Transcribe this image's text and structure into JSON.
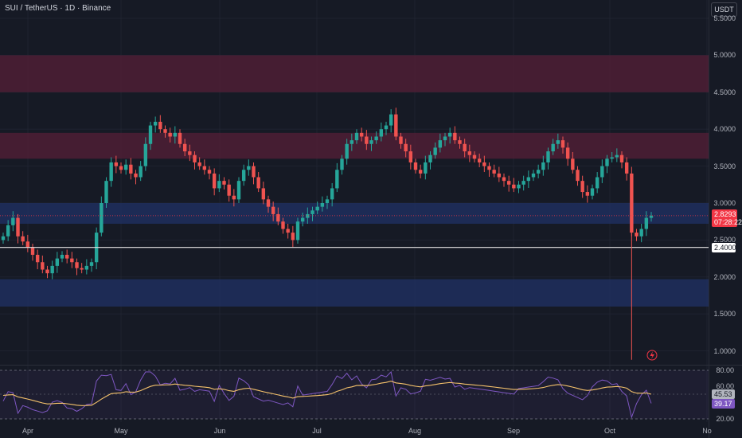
{
  "header": {
    "title": "SUI / TetherUS · 1D · Binance",
    "currency": "USDT"
  },
  "colors": {
    "background": "#161a25",
    "bull": "#26a69a",
    "bear": "#ef5350",
    "resistance_zone": "#4d1f35",
    "support_zone": "#1f2f5e",
    "rsi_line": "#7e57c2",
    "rsi_ma": "#f5c26b"
  },
  "price_axis": {
    "labels": [
      "5.5000",
      "5.0000",
      "4.5000",
      "4.0000",
      "3.5000",
      "3.0000",
      "2.5000",
      "2.0000",
      "1.5000",
      "1.0000"
    ],
    "values": [
      5.5,
      5.0,
      4.5,
      4.0,
      3.5,
      3.0,
      2.5,
      2.0,
      1.5,
      1.0
    ]
  },
  "time_axis": {
    "labels": [
      "Apr",
      "May",
      "Jun",
      "Jul",
      "Aug",
      "Sep",
      "Oct",
      "No"
    ]
  },
  "current_price": {
    "value": "2.8293",
    "countdown": "07:28:22"
  },
  "support_line": {
    "value": "2.4000"
  },
  "zones": [
    {
      "type": "resistance",
      "from": 4.5,
      "to": 5.0
    },
    {
      "type": "resistance",
      "from": 3.6,
      "to": 3.95
    },
    {
      "type": "support",
      "from": 2.72,
      "to": 3.0
    },
    {
      "type": "support",
      "from": 1.6,
      "to": 1.97
    }
  ],
  "rsi": {
    "labels": [
      "80.00",
      "60.00",
      "40.00",
      "20.00"
    ],
    "value": "39.17",
    "ma_value": "45.53"
  },
  "icons": {
    "alert": "lightning-icon"
  },
  "chart_data": {
    "type": "candlestick",
    "title": "SUI / TetherUS · 1D · Binance",
    "ylabel": "USDT",
    "ylim": [
      0.85,
      5.6
    ],
    "x_labels": [
      "Apr",
      "May",
      "Jun",
      "Jul",
      "Aug",
      "Sep",
      "Oct"
    ],
    "series": [
      {
        "name": "price",
        "values": [
          2.55,
          2.7,
          2.8,
          2.55,
          2.48,
          2.4,
          2.3,
          2.2,
          2.1,
          2.05,
          2.15,
          2.25,
          2.3,
          2.25,
          2.2,
          2.12,
          2.1,
          2.15,
          2.2,
          2.6,
          3.0,
          3.3,
          3.55,
          3.5,
          3.45,
          3.52,
          3.4,
          3.35,
          3.5,
          3.8,
          4.05,
          4.1,
          4.0,
          3.95,
          3.9,
          3.95,
          3.8,
          3.7,
          3.65,
          3.55,
          3.5,
          3.45,
          3.4,
          3.2,
          3.3,
          3.25,
          3.1,
          3.05,
          3.3,
          3.45,
          3.5,
          3.35,
          3.2,
          3.05,
          2.95,
          2.85,
          2.75,
          2.65,
          2.6,
          2.5,
          2.75,
          2.8,
          2.85,
          2.9,
          2.95,
          3.0,
          3.05,
          3.2,
          3.45,
          3.6,
          3.8,
          3.85,
          3.95,
          3.9,
          3.8,
          3.85,
          3.9,
          4.0,
          4.05,
          4.2,
          3.9,
          3.8,
          3.7,
          3.55,
          3.45,
          3.4,
          3.55,
          3.65,
          3.75,
          3.85,
          3.9,
          3.95,
          3.85,
          3.8,
          3.7,
          3.65,
          3.6,
          3.55,
          3.5,
          3.45,
          3.4,
          3.35,
          3.3,
          3.25,
          3.2,
          3.25,
          3.3,
          3.35,
          3.4,
          3.45,
          3.55,
          3.7,
          3.8,
          3.85,
          3.75,
          3.6,
          3.45,
          3.3,
          3.15,
          3.1,
          3.2,
          3.35,
          3.5,
          3.6,
          3.62,
          3.65,
          3.55,
          3.4,
          2.6,
          2.55,
          2.65,
          2.8,
          2.83
        ]
      }
    ]
  }
}
